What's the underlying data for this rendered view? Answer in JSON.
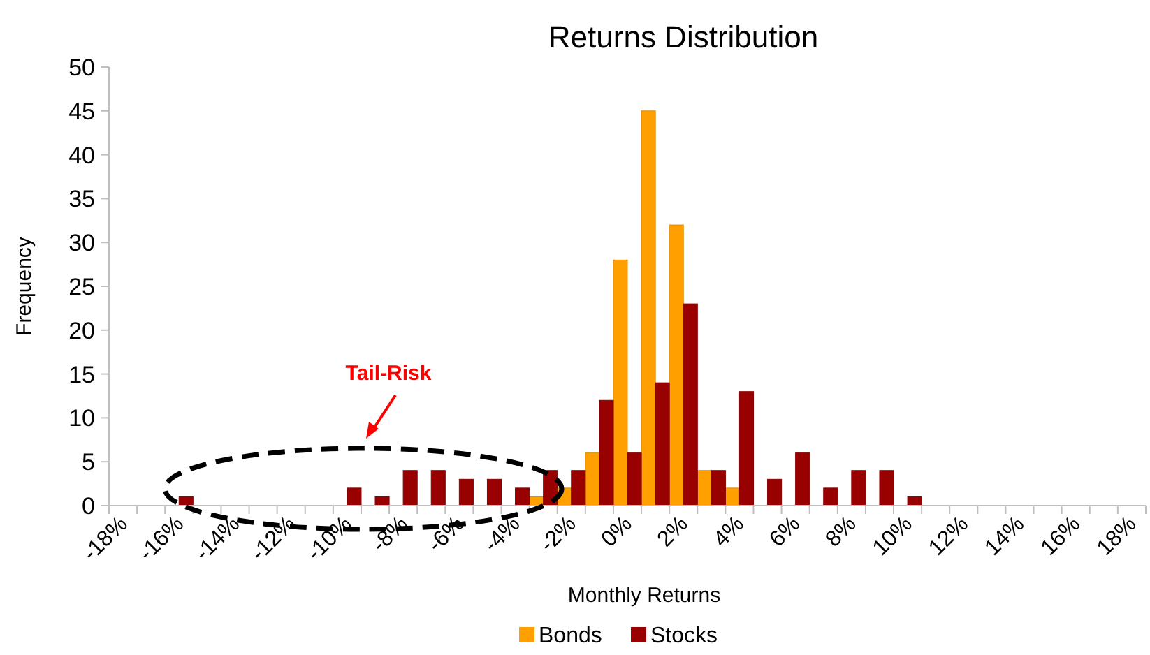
{
  "chart_data": {
    "type": "bar",
    "title": "Returns Distribution",
    "xlabel": "Monthly Returns",
    "ylabel": "Frequency",
    "annotations": [
      "Tail-Risk"
    ],
    "categories": [
      "-18%",
      null,
      "-16%",
      null,
      "-14%",
      null,
      "-12%",
      null,
      "-10%",
      null,
      "-8%",
      null,
      "-6%",
      null,
      "-4%",
      null,
      "-2%",
      null,
      "0%",
      null,
      "2%",
      null,
      "4%",
      null,
      "6%",
      null,
      "8%",
      null,
      "10%",
      null,
      "12%",
      null,
      "14%",
      null,
      "16%",
      null,
      "18%"
    ],
    "series": [
      {
        "name": "Bonds",
        "color": "#ffa000",
        "values": [
          null,
          null,
          null,
          null,
          null,
          null,
          null,
          null,
          null,
          null,
          null,
          null,
          null,
          null,
          null,
          1,
          2,
          6,
          28,
          45,
          32,
          4,
          2,
          null,
          null,
          null,
          null,
          null,
          null,
          null,
          null,
          null,
          null,
          null,
          null,
          null,
          null
        ]
      },
      {
        "name": "Stocks",
        "color": "#990000",
        "values": [
          null,
          null,
          1,
          null,
          null,
          null,
          null,
          null,
          2,
          1,
          4,
          4,
          3,
          3,
          2,
          4,
          4,
          12,
          6,
          14,
          23,
          4,
          13,
          3,
          6,
          2,
          4,
          4,
          1,
          null,
          null,
          null,
          null,
          null,
          null,
          null,
          null
        ]
      }
    ],
    "ylim": [
      0,
      50
    ],
    "yticks": [
      0,
      5,
      10,
      15,
      20,
      25,
      30,
      35,
      40,
      45,
      50
    ],
    "grid": false,
    "legend": "bottom"
  }
}
